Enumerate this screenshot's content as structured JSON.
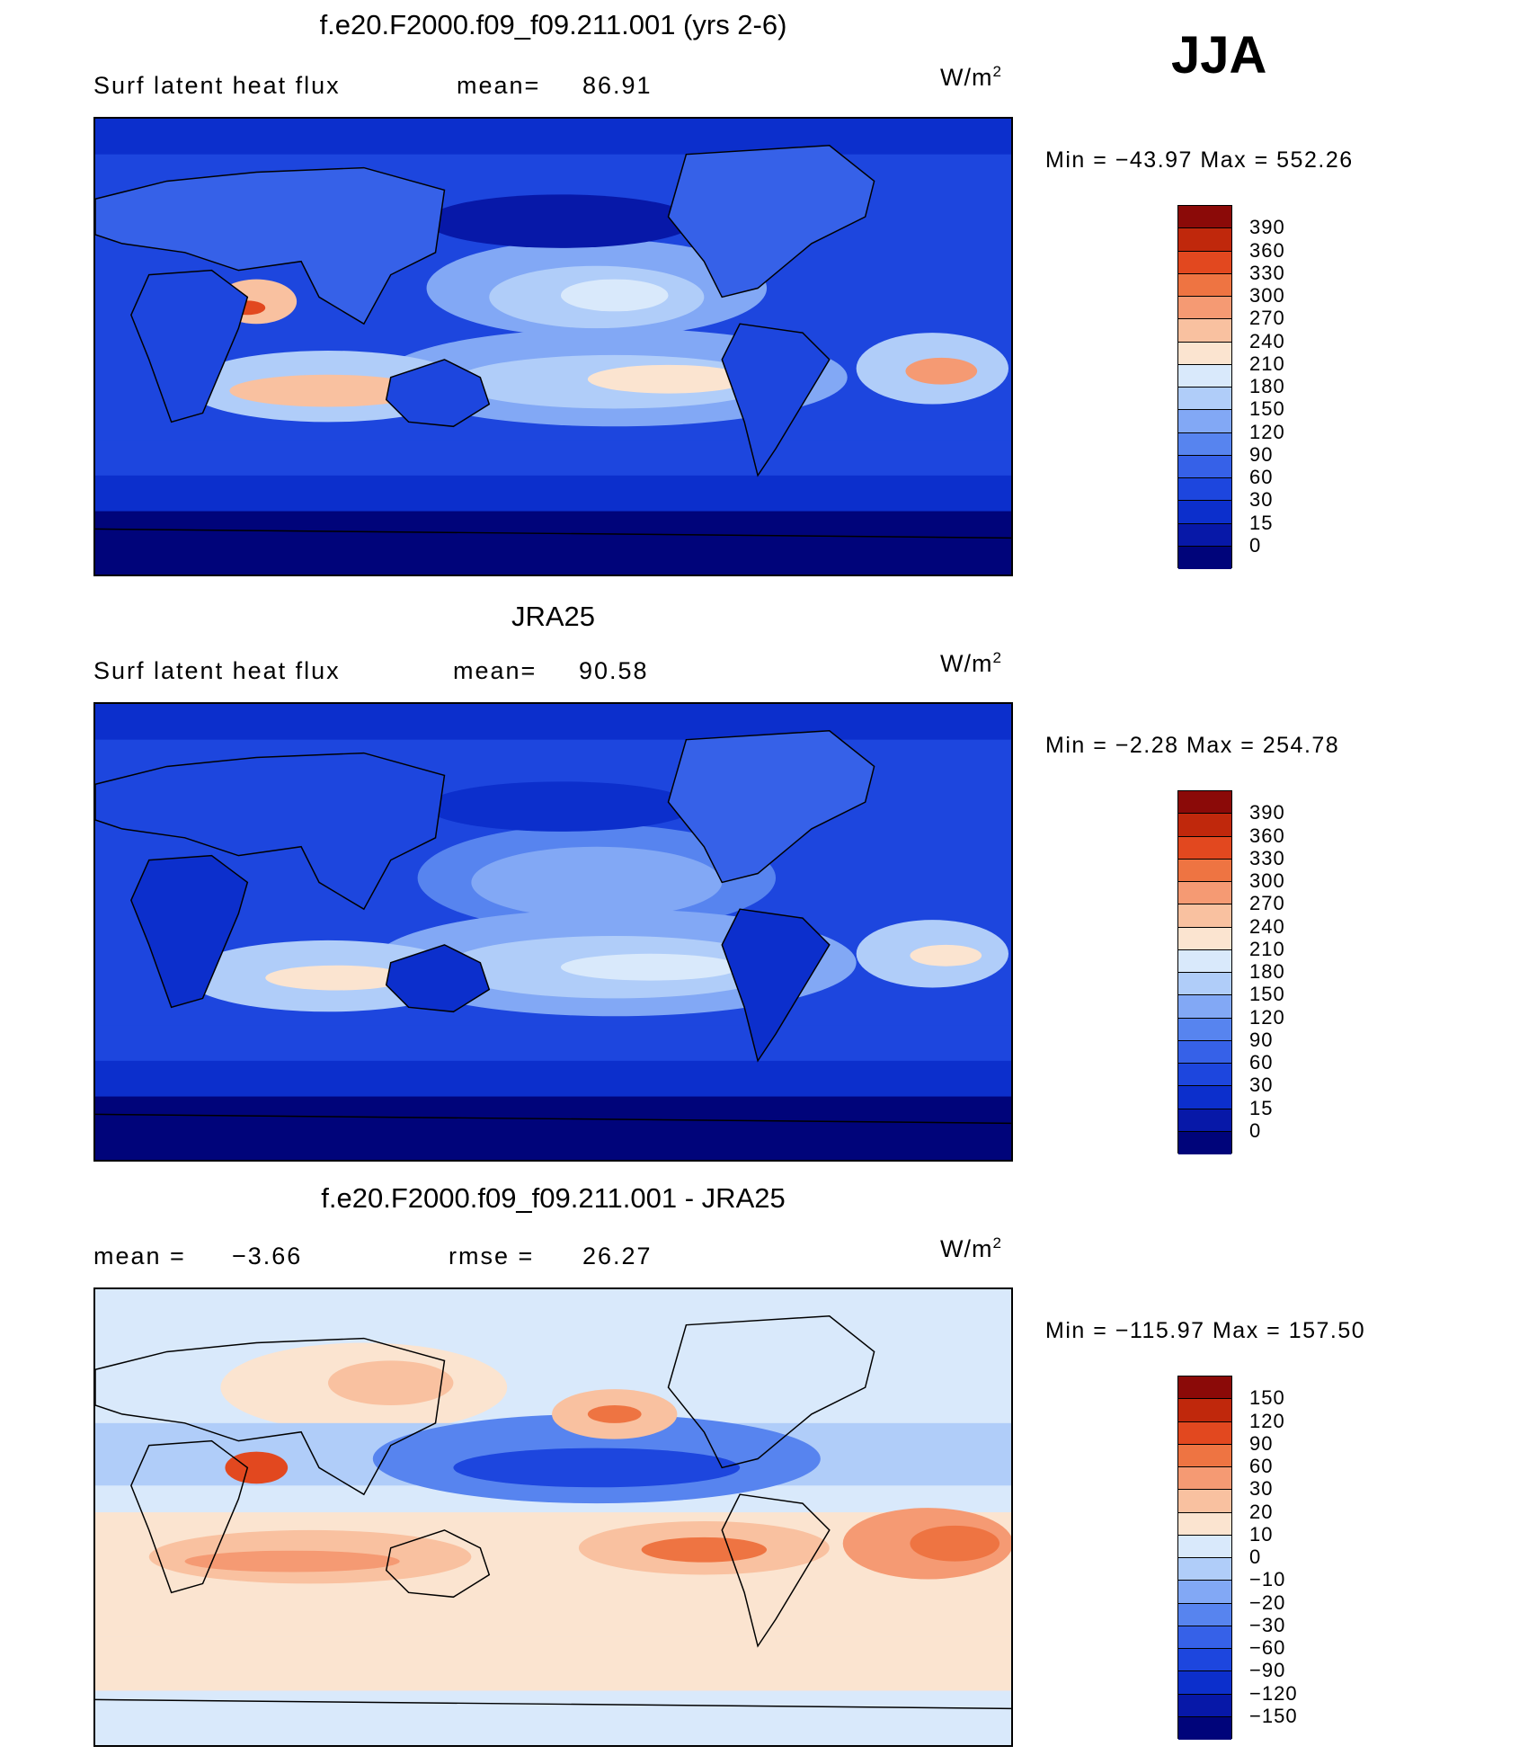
{
  "season": "JJA",
  "colors": {
    "abs_scale": [
      "#00047a",
      "#0718a8",
      "#0c2fcc",
      "#1d46de",
      "#3661e8",
      "#5784ef",
      "#82a8f5",
      "#b0cdf9",
      "#d9e9fb",
      "#fbe4d0",
      "#f9c1a0",
      "#f59a73",
      "#ee7442",
      "#e2481f",
      "#c0280c",
      "#8b0a08"
    ],
    "diff_scale": [
      "#00047a",
      "#0718a8",
      "#0c2fcc",
      "#1d46de",
      "#3661e8",
      "#5784ef",
      "#82a8f5",
      "#b0cdf9",
      "#d9e9fb",
      "#fbe4d0",
      "#f9c1a0",
      "#f59a73",
      "#ee7442",
      "#e2481f",
      "#c0280c",
      "#8b0a08"
    ],
    "land_outline": "#000000"
  },
  "panels": [
    {
      "id": "model",
      "title": "f.e20.F2000.f09_f09.211.001 (yrs 2-6)",
      "left_label": "Surf  latent  heat  flux",
      "stat_label": "mean=",
      "stat_value": "86.91",
      "units": "W/m",
      "units_sup": "2",
      "min_label": "Min  =",
      "min_value": "−43.97",
      "max_label": "Max  =",
      "max_value": "552.26",
      "colorbar_ticks": [
        "390",
        "360",
        "330",
        "300",
        "270",
        "240",
        "210",
        "180",
        "150",
        "120",
        "90",
        "60",
        "30",
        "15",
        "0"
      ]
    },
    {
      "id": "obs",
      "title": "JRA25",
      "left_label": "Surf  latent  heat  flux",
      "stat_label": "mean=",
      "stat_value": "90.58",
      "units": "W/m",
      "units_sup": "2",
      "min_label": "Min  =",
      "min_value": "−2.28",
      "max_label": "Max  =",
      "max_value": "254.78",
      "colorbar_ticks": [
        "390",
        "360",
        "330",
        "300",
        "270",
        "240",
        "210",
        "180",
        "150",
        "120",
        "90",
        "60",
        "30",
        "15",
        "0"
      ]
    },
    {
      "id": "diff",
      "title": "f.e20.F2000.f09_f09.211.001 - JRA25",
      "left_label": "mean  =",
      "left_value": "−3.66",
      "stat_label": "rmse  =",
      "stat_value": "26.27",
      "units": "W/m",
      "units_sup": "2",
      "min_label": "Min  =",
      "min_value": "−115.97",
      "max_label": "Max  =",
      "max_value": "157.50",
      "colorbar_ticks": [
        "150",
        "120",
        "90",
        "60",
        "30",
        "20",
        "10",
        "0",
        "−10",
        "−20",
        "−30",
        "−60",
        "−90",
        "−120",
        "−150"
      ]
    }
  ]
}
